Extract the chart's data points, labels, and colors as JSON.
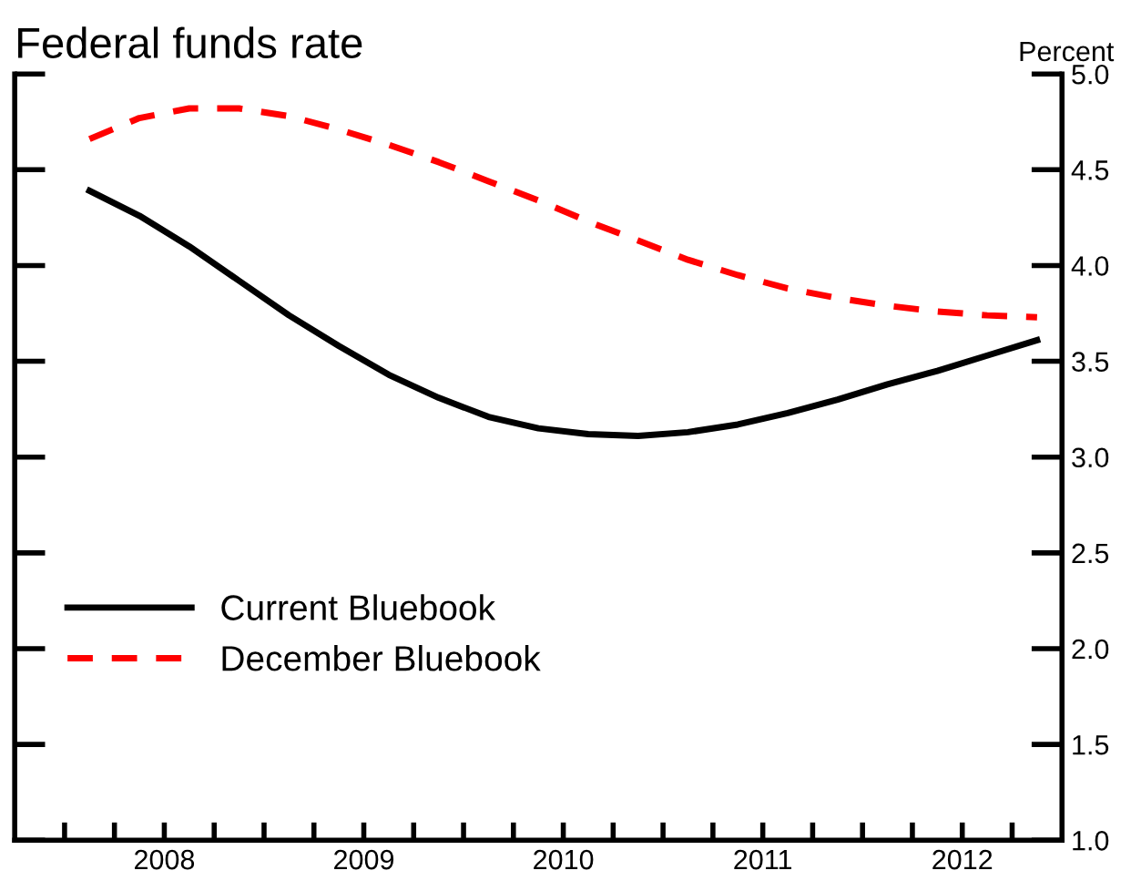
{
  "chart_data": {
    "type": "line",
    "title": "Federal funds rate",
    "ylabel": "Percent",
    "x": [
      2008.125,
      2008.375,
      2008.625,
      2008.875,
      2009.125,
      2009.375,
      2009.625,
      2009.875,
      2010.125,
      2010.375,
      2010.625,
      2010.875,
      2011.125,
      2011.375,
      2011.625,
      2011.875,
      2012.125,
      2012.375,
      2012.625,
      2012.875
    ],
    "series": [
      {
        "name": "Current Bluebook",
        "color": "#000000",
        "line_style": "solid",
        "values": [
          4.39,
          4.26,
          4.1,
          3.92,
          3.74,
          3.58,
          3.43,
          3.31,
          3.21,
          3.15,
          3.12,
          3.11,
          3.13,
          3.17,
          3.23,
          3.3,
          3.38,
          3.45,
          3.53,
          3.61
        ]
      },
      {
        "name": "December Bluebook",
        "color": "#ff0000",
        "line_style": "dashed",
        "values": [
          4.66,
          4.77,
          4.82,
          4.82,
          4.78,
          4.71,
          4.63,
          4.54,
          4.44,
          4.34,
          4.23,
          4.13,
          4.03,
          3.95,
          3.88,
          3.83,
          3.79,
          3.76,
          3.74,
          3.73
        ]
      }
    ],
    "xlim": [
      2007.75,
      2013
    ],
    "xticks": [
      {
        "value": 2008,
        "label": null
      },
      {
        "value": 2008.25,
        "label": null
      },
      {
        "value": 2008.5,
        "label": "2008"
      },
      {
        "value": 2008.75,
        "label": null
      },
      {
        "value": 2009,
        "label": null
      },
      {
        "value": 2009.25,
        "label": null
      },
      {
        "value": 2009.5,
        "label": "2009"
      },
      {
        "value": 2009.75,
        "label": null
      },
      {
        "value": 2010,
        "label": null
      },
      {
        "value": 2010.25,
        "label": null
      },
      {
        "value": 2010.5,
        "label": "2010"
      },
      {
        "value": 2010.75,
        "label": null
      },
      {
        "value": 2011,
        "label": null
      },
      {
        "value": 2011.25,
        "label": null
      },
      {
        "value": 2011.5,
        "label": "2011"
      },
      {
        "value": 2011.75,
        "label": null
      },
      {
        "value": 2012,
        "label": null
      },
      {
        "value": 2012.25,
        "label": null
      },
      {
        "value": 2012.5,
        "label": "2012"
      },
      {
        "value": 2012.75,
        "label": null
      }
    ],
    "ylim": [
      1.0,
      5.0
    ],
    "yticks": [
      {
        "value": 1.0,
        "label": "1.0"
      },
      {
        "value": 1.5,
        "label": "1.5"
      },
      {
        "value": 2.0,
        "label": "2.0"
      },
      {
        "value": 2.5,
        "label": "2.5"
      },
      {
        "value": 3.0,
        "label": "3.0"
      },
      {
        "value": 3.5,
        "label": "3.5"
      },
      {
        "value": 4.0,
        "label": "4.0"
      },
      {
        "value": 4.5,
        "label": "4.5"
      },
      {
        "value": 5.0,
        "label": "5.0"
      }
    ],
    "grid": false,
    "legend": "bottom left"
  }
}
